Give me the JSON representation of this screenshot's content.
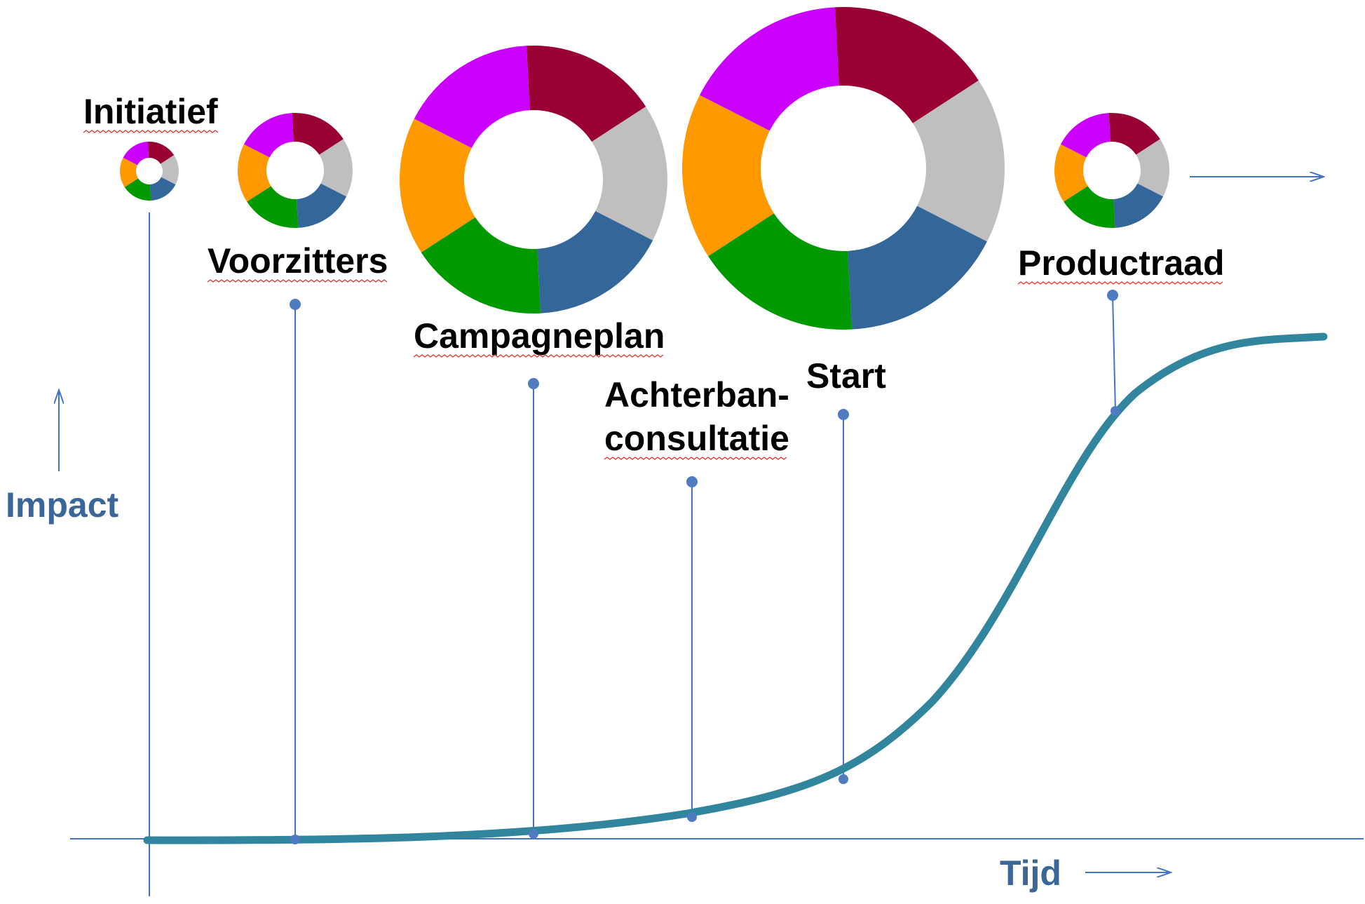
{
  "axes": {
    "y_label": "Impact",
    "x_label": "Tijd"
  },
  "colors": {
    "axis": "#4472c4",
    "curve": "#31859c",
    "marker": "#4f7cc0",
    "label": "#000000",
    "axis_label": "#3a6698",
    "spellcheck": "#e23b3b"
  },
  "segment_colors": [
    "#ff9900",
    "#cc00ff",
    "#990033",
    "#bfbfbf",
    "#336699",
    "#009900"
  ],
  "stages": [
    {
      "id": "initiatief",
      "label": "Initiatief",
      "size": "smallest"
    },
    {
      "id": "voorzitters",
      "label": "Voorzitters",
      "size": "small"
    },
    {
      "id": "campagneplan",
      "label": "Campagneplan",
      "size": "large"
    },
    {
      "id": "achterbanconsultatie",
      "label_line1": "Achterban-",
      "label_line2": "consultatie"
    },
    {
      "id": "start",
      "label": "Start",
      "size": "largest"
    },
    {
      "id": "productraad",
      "label": "Productraad",
      "size": "small"
    }
  ]
}
